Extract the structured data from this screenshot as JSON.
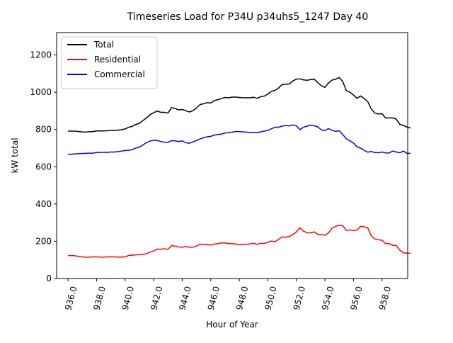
{
  "chart_data": {
    "type": "line",
    "title": "Timeseries Load for P34U p34uhs5_1247  Day 40",
    "xlabel": "Hour of Year",
    "ylabel": "kW total",
    "xlim": [
      935.2,
      959.8
    ],
    "ylim": [
      0,
      1320
    ],
    "xticks": [
      936,
      938,
      940,
      942,
      944,
      946,
      948,
      950,
      952,
      954,
      956,
      958
    ],
    "xtick_labels": [
      "936.0",
      "938.0",
      "940.0",
      "942.0",
      "944.0",
      "946.0",
      "948.0",
      "950.0",
      "952.0",
      "954.0",
      "956.0",
      "958.0"
    ],
    "yticks": [
      0,
      200,
      400,
      600,
      800,
      1000,
      1200
    ],
    "ytick_labels": [
      "0",
      "200",
      "400",
      "600",
      "800",
      "1000",
      "1200"
    ],
    "grid": false,
    "legend_position": "top-left",
    "x_start": 936.0,
    "x_step": 0.25,
    "series": [
      {
        "name": "Total",
        "color": "#000000",
        "values": [
          791,
          791,
          791,
          789,
          787,
          786,
          788,
          789,
          792,
          792,
          792,
          793,
          795,
          795,
          796,
          799,
          803,
          812,
          817,
          827,
          833,
          848,
          862,
          880,
          890,
          899,
          892,
          892,
          888,
          917,
          913,
          905,
          907,
          901,
          894,
          901,
          915,
          934,
          938,
          944,
          942,
          955,
          960,
          966,
          972,
          970,
          974,
          974,
          972,
          970,
          970,
          970,
          973,
          967,
          976,
          979,
          990,
          1005,
          1010,
          1022,
          1041,
          1043,
          1044,
          1060,
          1070,
          1072,
          1066,
          1064,
          1068,
          1070,
          1051,
          1035,
          1026,
          1050,
          1065,
          1070,
          1079,
          1057,
          1008,
          1000,
          985,
          967,
          980,
          966,
          950,
          910,
          888,
          883,
          885,
          861,
          862,
          862,
          856,
          827,
          822,
          813,
          808
        ]
      },
      {
        "name": "Residential",
        "color": "#ff0000",
        "values": [
          123,
          123,
          122,
          119,
          116,
          114,
          115,
          116,
          116,
          115,
          115,
          116,
          116,
          116,
          115,
          115,
          116,
          124,
          125,
          127,
          128,
          130,
          133,
          142,
          148,
          158,
          157,
          160,
          157,
          177,
          174,
          170,
          168,
          172,
          168,
          168,
          174,
          185,
          182,
          183,
          179,
          185,
          187,
          191,
          191,
          187,
          188,
          185,
          183,
          183,
          184,
          186,
          189,
          183,
          189,
          188,
          195,
          201,
          198,
          210,
          223,
          222,
          225,
          236,
          250,
          273,
          254,
          246,
          245,
          250,
          237,
          237,
          232,
          245,
          270,
          280,
          286,
          284,
          258,
          261,
          258,
          260,
          280,
          278,
          272,
          228,
          212,
          208,
          206,
          187,
          188,
          178,
          177,
          152,
          138,
          136,
          136
        ]
      },
      {
        "name": "Commercial",
        "color": "#0000ff",
        "values": [
          667,
          667,
          669,
          670,
          671,
          672,
          673,
          673,
          676,
          677,
          677,
          677,
          679,
          679,
          681,
          684,
          687,
          688,
          692,
          700,
          705,
          717,
          729,
          738,
          742,
          741,
          735,
          732,
          731,
          740,
          739,
          735,
          739,
          729,
          726,
          733,
          741,
          749,
          756,
          761,
          763,
          770,
          773,
          775,
          781,
          783,
          786,
          789,
          789,
          787,
          786,
          784,
          784,
          784,
          787,
          791,
          795,
          804,
          812,
          812,
          818,
          821,
          819,
          824,
          820,
          799,
          812,
          818,
          823,
          820,
          814,
          798,
          794,
          805,
          795,
          790,
          793,
          773,
          750,
          739,
          727,
          707,
          700,
          688,
          678,
          682,
          676,
          675,
          679,
          674,
          674,
          684,
          679,
          675,
          684,
          672,
          672
        ]
      }
    ]
  }
}
